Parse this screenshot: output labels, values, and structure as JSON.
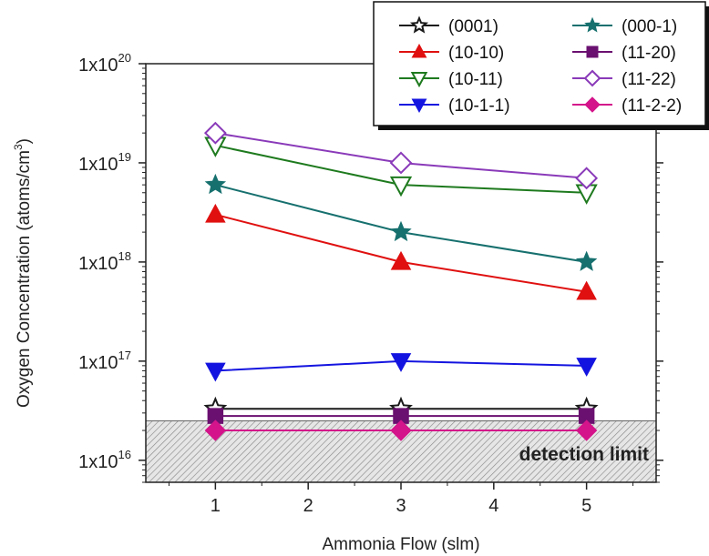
{
  "chart_data": {
    "type": "line",
    "xlabel": "Ammonia Flow (slm)",
    "ylabel_main": "Oxygen Concentration (atoms/cm",
    "ylabel_sup": "3",
    "ylabel_close": ")",
    "yscale": "log",
    "xlim": [
      0.25,
      5.75
    ],
    "ylim": [
      6000000000000000.0,
      1e+20
    ],
    "x_ticks": [
      1,
      2,
      3,
      4,
      5
    ],
    "x_tick_labels": [
      "1",
      "2",
      "3",
      "4",
      "5"
    ],
    "y_ticks": [
      {
        "value": 1e+16,
        "base": "1x10",
        "exp": "16"
      },
      {
        "value": 1e+17,
        "base": "1x10",
        "exp": "17"
      },
      {
        "value": 1e+18,
        "base": "1x10",
        "exp": "18"
      },
      {
        "value": 1e+19,
        "base": "1x10",
        "exp": "19"
      },
      {
        "value": 1e+20,
        "base": "1x10",
        "exp": "20"
      }
    ],
    "x": [
      1,
      3,
      5
    ],
    "detection_limit": {
      "label": "detection limit",
      "upper": 2.5e+16
    },
    "legend_position": "top-right",
    "series": [
      {
        "name": "(0001)",
        "color": "#1a1a1a",
        "marker": "star-open",
        "values": [
          3.3e+16,
          3.3e+16,
          3.3e+16
        ]
      },
      {
        "name": "(000-1)",
        "color": "#16706e",
        "marker": "star",
        "values": [
          6e+18,
          2e+18,
          1e+18
        ]
      },
      {
        "name": "(10-10)",
        "color": "#e01010",
        "marker": "triangle-up",
        "values": [
          3e+18,
          1e+18,
          5e+17
        ]
      },
      {
        "name": "(11-20)",
        "color": "#6a1070",
        "marker": "square",
        "values": [
          2.8e+16,
          2.8e+16,
          2.8e+16
        ]
      },
      {
        "name": "(10-11)",
        "color": "#1e7a1e",
        "marker": "triangle-down-open",
        "values": [
          1.5e+19,
          6e+18,
          5e+18
        ]
      },
      {
        "name": "(11-22)",
        "color": "#8a3ab9",
        "marker": "diamond-open",
        "values": [
          2e+19,
          1e+19,
          7e+18
        ]
      },
      {
        "name": "(10-1-1)",
        "color": "#1414e0",
        "marker": "triangle-down",
        "values": [
          8e+16,
          1e+17,
          9e+16
        ]
      },
      {
        "name": "(11-2-2)",
        "color": "#d4148a",
        "marker": "diamond",
        "values": [
          2e+16,
          2e+16,
          2e+16
        ]
      }
    ]
  }
}
